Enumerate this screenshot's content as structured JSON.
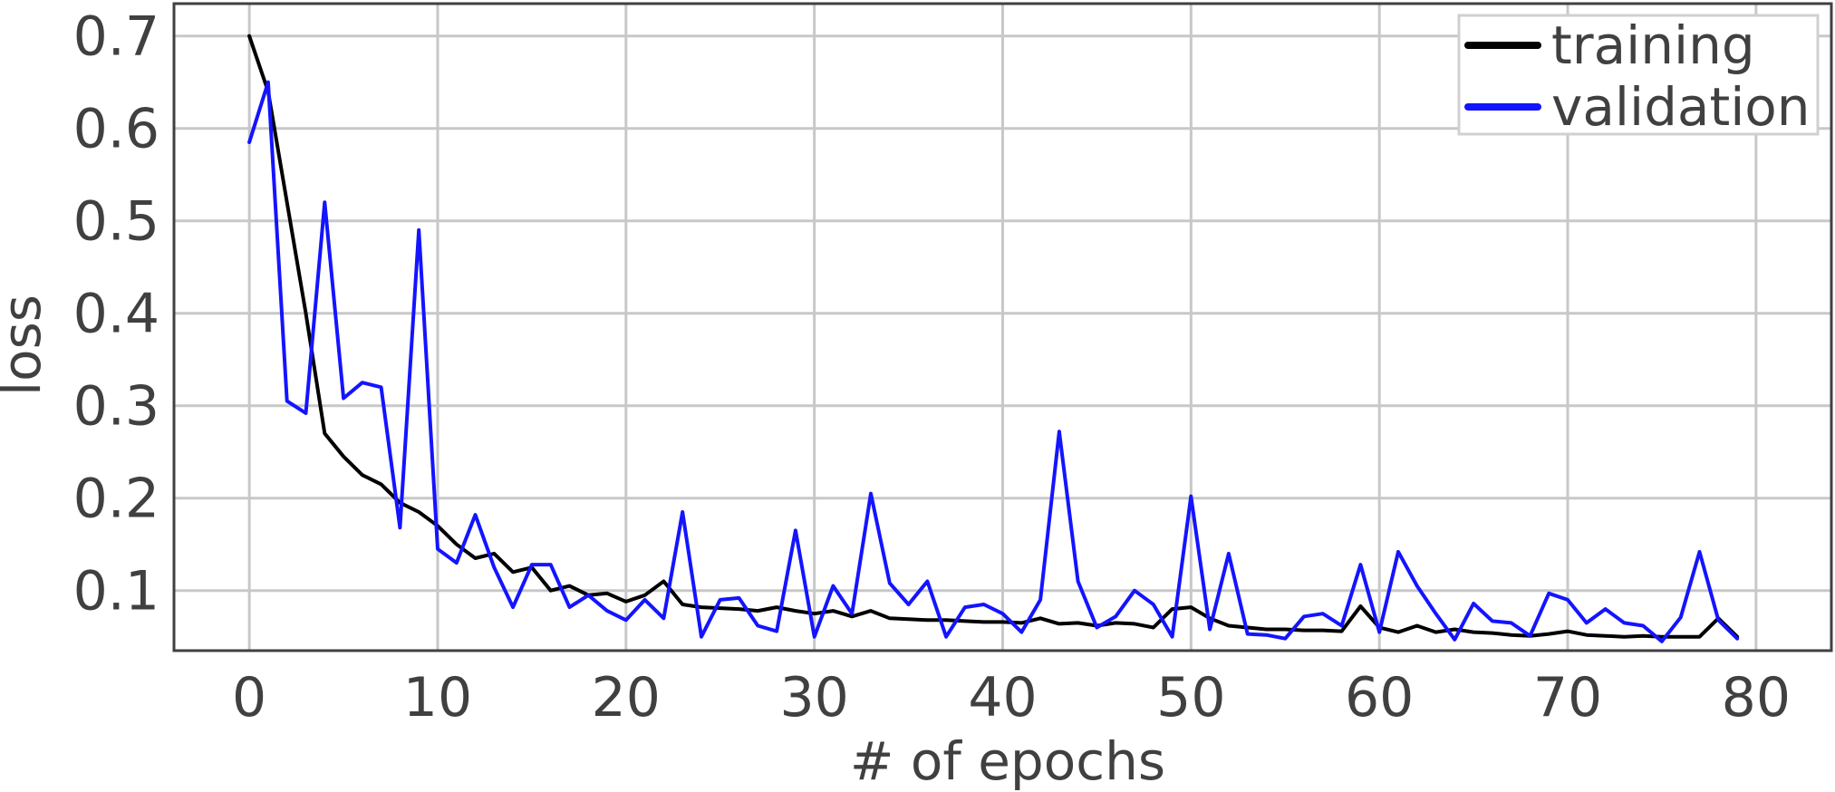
{
  "chart_data": {
    "type": "line",
    "title": "",
    "xlabel": "# of epochs",
    "ylabel": "loss",
    "xlim": [
      -4,
      84
    ],
    "ylim": [
      0.035,
      0.735
    ],
    "grid": true,
    "legend_position": "top-right",
    "x_ticks": [
      0,
      10,
      20,
      30,
      40,
      50,
      60,
      70,
      80
    ],
    "x_tick_labels": [
      "0",
      "10",
      "20",
      "30",
      "40",
      "50",
      "60",
      "70",
      "80"
    ],
    "y_ticks": [
      0.1,
      0.2,
      0.3,
      0.4,
      0.5,
      0.6,
      0.7
    ],
    "y_tick_labels": [
      "0.1",
      "0.2",
      "0.3",
      "0.4",
      "0.5",
      "0.6",
      "0.7"
    ],
    "x": [
      0,
      1,
      2,
      3,
      4,
      5,
      6,
      7,
      8,
      9,
      10,
      11,
      12,
      13,
      14,
      15,
      16,
      17,
      18,
      19,
      20,
      21,
      22,
      23,
      24,
      25,
      26,
      27,
      28,
      29,
      30,
      31,
      32,
      33,
      34,
      35,
      36,
      37,
      38,
      39,
      40,
      41,
      42,
      43,
      44,
      45,
      46,
      47,
      48,
      49,
      50,
      51,
      52,
      53,
      54,
      55,
      56,
      57,
      58,
      59,
      60,
      61,
      62,
      63,
      64,
      65,
      66,
      67,
      68,
      69,
      70,
      71,
      72,
      73,
      74,
      75,
      76,
      77,
      78,
      79
    ],
    "series": [
      {
        "name": "training",
        "color": "#000000",
        "values": [
          0.7,
          0.64,
          0.52,
          0.4,
          0.27,
          0.245,
          0.225,
          0.215,
          0.195,
          0.185,
          0.17,
          0.15,
          0.135,
          0.14,
          0.12,
          0.125,
          0.1,
          0.105,
          0.095,
          0.097,
          0.088,
          0.095,
          0.11,
          0.085,
          0.082,
          0.081,
          0.08,
          0.078,
          0.082,
          0.078,
          0.075,
          0.078,
          0.072,
          0.078,
          0.07,
          0.069,
          0.068,
          0.068,
          0.067,
          0.066,
          0.066,
          0.065,
          0.07,
          0.064,
          0.065,
          0.062,
          0.065,
          0.064,
          0.06,
          0.08,
          0.082,
          0.07,
          0.062,
          0.06,
          0.058,
          0.058,
          0.057,
          0.057,
          0.056,
          0.083,
          0.06,
          0.055,
          0.062,
          0.055,
          0.058,
          0.055,
          0.054,
          0.052,
          0.051,
          0.053,
          0.056,
          0.052,
          0.051,
          0.05,
          0.051,
          0.05,
          0.05,
          0.05,
          0.07,
          0.05
        ]
      },
      {
        "name": "validation",
        "color": "#1414ff",
        "values": [
          0.585,
          0.65,
          0.305,
          0.292,
          0.52,
          0.308,
          0.325,
          0.32,
          0.168,
          0.49,
          0.145,
          0.13,
          0.182,
          0.125,
          0.082,
          0.128,
          0.128,
          0.082,
          0.095,
          0.078,
          0.068,
          0.09,
          0.07,
          0.185,
          0.05,
          0.09,
          0.092,
          0.062,
          0.056,
          0.165,
          0.05,
          0.105,
          0.075,
          0.205,
          0.108,
          0.085,
          0.11,
          0.05,
          0.082,
          0.085,
          0.075,
          0.055,
          0.09,
          0.272,
          0.11,
          0.06,
          0.072,
          0.1,
          0.085,
          0.05,
          0.202,
          0.058,
          0.14,
          0.053,
          0.052,
          0.048,
          0.072,
          0.075,
          0.062,
          0.128,
          0.055,
          0.142,
          0.105,
          0.075,
          0.047,
          0.086,
          0.067,
          0.065,
          0.051,
          0.097,
          0.09,
          0.065,
          0.08,
          0.065,
          0.062,
          0.045,
          0.071,
          0.142,
          0.068,
          0.048
        ]
      }
    ]
  }
}
